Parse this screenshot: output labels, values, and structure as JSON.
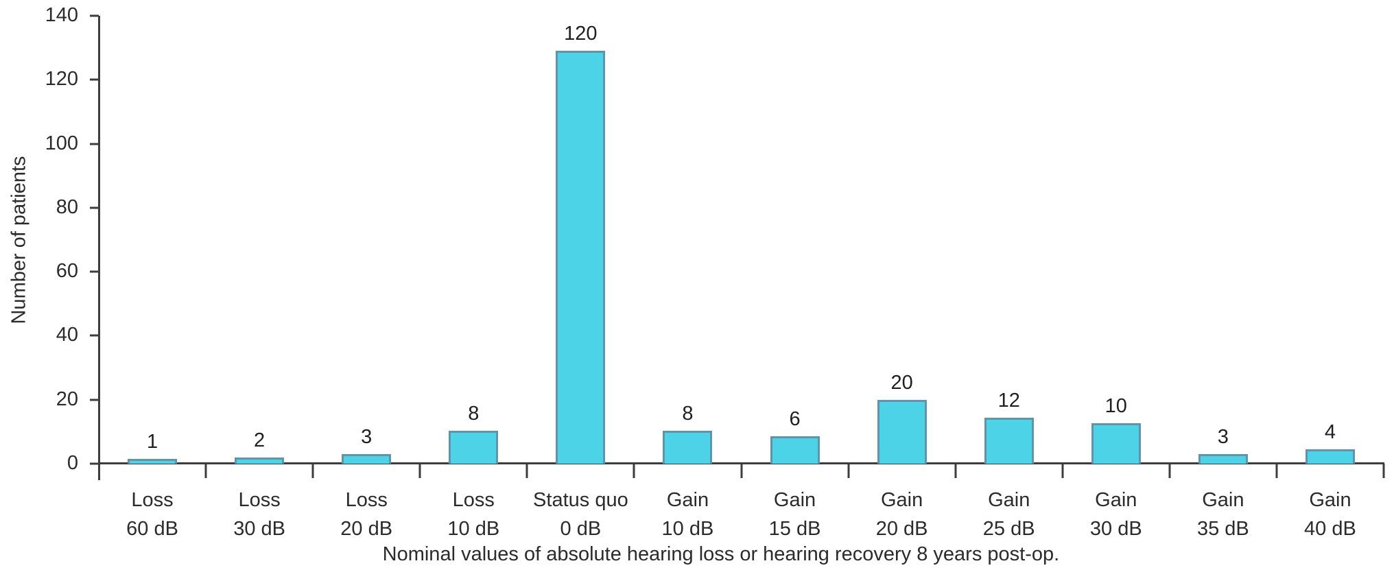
{
  "chart_data": {
    "type": "bar",
    "title": "",
    "xlabel": "Nominal values of absolute hearing loss or hearing recovery 8 years post-op.",
    "ylabel": "Number of patients",
    "ylim": [
      0,
      140
    ],
    "yticks": [
      0,
      20,
      40,
      60,
      80,
      100,
      120,
      140
    ],
    "grid": "off",
    "legend": "none",
    "categories": [
      [
        "Loss",
        "60 dB"
      ],
      [
        "Loss",
        "30 dB"
      ],
      [
        "Loss",
        "20 dB"
      ],
      [
        "Loss",
        "10 dB"
      ],
      [
        "Status quo",
        "0 dB"
      ],
      [
        "Gain",
        "10 dB"
      ],
      [
        "Gain",
        "15 dB"
      ],
      [
        "Gain",
        "20 dB"
      ],
      [
        "Gain",
        "25 dB"
      ],
      [
        "Gain",
        "30 dB"
      ],
      [
        "Gain",
        "35 dB"
      ],
      [
        "Gain",
        "40 dB"
      ]
    ],
    "values": [
      1,
      2,
      3,
      8,
      120,
      8,
      6,
      20,
      12,
      10,
      3,
      4
    ],
    "drawn_bar_heights": [
      1.4,
      2,
      3,
      10.4,
      129,
      10.3,
      8.6,
      20,
      14.3,
      12.6,
      3,
      4.4
    ],
    "colors": {
      "bar_fill": "#4dd3e8",
      "bar_border": "#5e94ac",
      "axis": "#3d3d3d",
      "text": "#2b2b2b",
      "background": "#ffffff"
    }
  }
}
